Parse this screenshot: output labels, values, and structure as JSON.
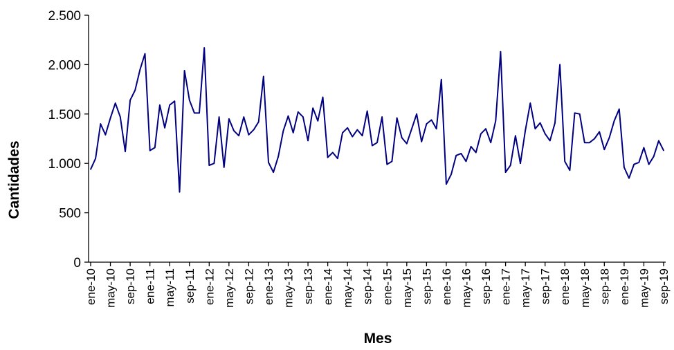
{
  "chart_data": {
    "type": "line",
    "title": "",
    "xlabel": "Mes",
    "ylabel": "Cantidades",
    "ylim": [
      0,
      2500
    ],
    "yticks": [
      0,
      500,
      1000,
      1500,
      2000,
      2500
    ],
    "ytick_labels": [
      "0",
      "500",
      "1.000",
      "1.500",
      "2.000",
      "2.500"
    ],
    "xtick_labels": [
      "ene-10",
      "may-10",
      "sep-10",
      "ene-11",
      "may-11",
      "sep-11",
      "ene-12",
      "may-12",
      "sep-12",
      "ene-13",
      "may-13",
      "sep-13",
      "ene-14",
      "may-14",
      "sep-14",
      "ene-15",
      "may-15",
      "sep-15",
      "ene-16",
      "may-16",
      "sep-16",
      "ene-17",
      "may-17",
      "sep-17",
      "ene-18",
      "may-18",
      "sep-18",
      "ene-19",
      "may-19",
      "sep-19"
    ],
    "grid": false,
    "line_color": "#000080",
    "series": [
      {
        "values": [
          940,
          1050,
          1400,
          1290,
          1460,
          1610,
          1470,
          1120,
          1640,
          1740,
          1950,
          2110,
          1130,
          1160,
          1590,
          1360,
          1590,
          1630,
          710,
          1940,
          1640,
          1510,
          1510,
          2170,
          980,
          1000,
          1470,
          960,
          1450,
          1330,
          1280,
          1470,
          1290,
          1340,
          1420,
          1880,
          1010,
          910,
          1070,
          1330,
          1480,
          1310,
          1520,
          1470,
          1230,
          1560,
          1430,
          1670,
          1060,
          1110,
          1050,
          1310,
          1360,
          1270,
          1340,
          1280,
          1530,
          1180,
          1210,
          1470,
          990,
          1020,
          1460,
          1260,
          1200,
          1350,
          1500,
          1220,
          1400,
          1440,
          1350,
          1850,
          790,
          890,
          1080,
          1100,
          1020,
          1170,
          1110,
          1300,
          1350,
          1210,
          1430,
          2130,
          910,
          980,
          1280,
          1000,
          1330,
          1610,
          1350,
          1410,
          1300,
          1230,
          1410,
          2000,
          1020,
          930,
          1510,
          1500,
          1210,
          1210,
          1250,
          1320,
          1140,
          1260,
          1430,
          1550,
          960,
          850,
          990,
          1010,
          1160,
          990,
          1070,
          1230,
          1130
        ]
      }
    ]
  }
}
